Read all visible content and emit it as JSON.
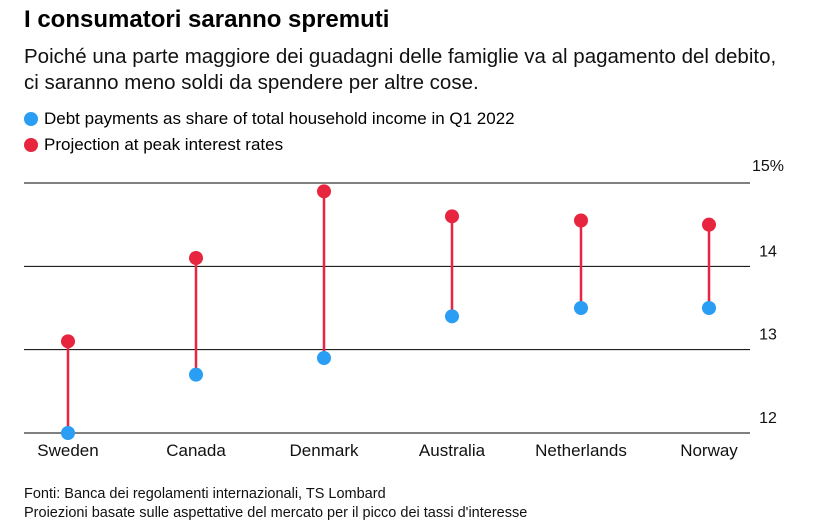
{
  "title": "I consumatori saranno spremuti",
  "subtitle": "Poiché una parte maggiore dei guadagni delle famiglie va al pagamento del debito, ci saranno meno soldi da spendere per altre cose.",
  "legend": [
    {
      "label": "Debt payments as share of total household income in Q1 2022",
      "color": "#2a9df4"
    },
    {
      "label": "Projection at peak interest rates",
      "color": "#e8253f"
    }
  ],
  "footer": {
    "sources": "Fonti: Banca dei regolamenti internazionali, TS Lombard",
    "note": "Proiezioni basate sulle aspettative del mercato per il picco dei tassi d'interesse"
  },
  "chart_data": {
    "type": "dumbbell",
    "categories": [
      "Sweden",
      "Canada",
      "Denmark",
      "Australia",
      "Netherlands",
      "Norway"
    ],
    "series": [
      {
        "name": "Debt payments as share of total household income in Q1 2022",
        "color": "#2a9df4",
        "values": [
          12.0,
          12.7,
          12.9,
          13.4,
          13.5,
          13.5
        ]
      },
      {
        "name": "Projection at peak interest rates",
        "color": "#e8253f",
        "values": [
          13.1,
          14.1,
          14.9,
          14.6,
          14.55,
          14.5
        ]
      }
    ],
    "connector_color": "#e8253f",
    "ylim": [
      12,
      15
    ],
    "yticks": [
      {
        "value": 15,
        "label": "15%"
      },
      {
        "value": 14,
        "label": "14"
      },
      {
        "value": 13,
        "label": "13"
      },
      {
        "value": 12,
        "label": "12"
      }
    ],
    "grid": true,
    "ylabel": "",
    "xlabel": ""
  }
}
